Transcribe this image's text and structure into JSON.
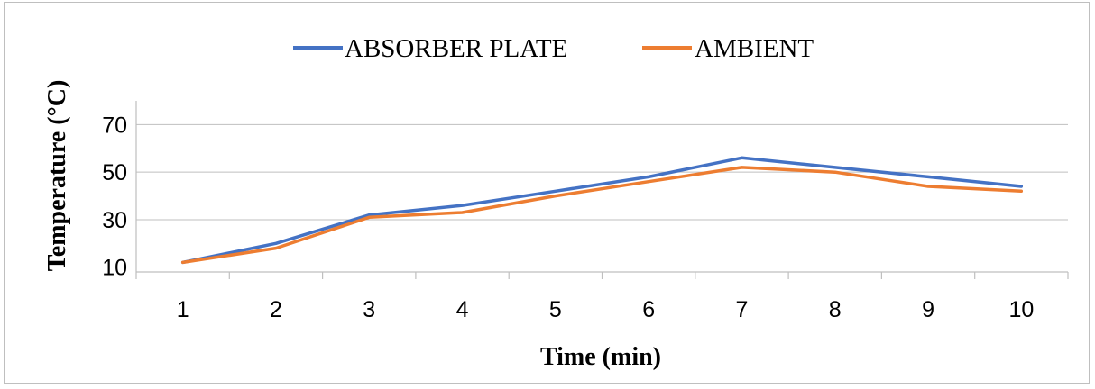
{
  "chart_data": {
    "type": "line",
    "title": "",
    "xlabel": "Time (min)",
    "ylabel": "Temperature (°C)",
    "categories": [
      "1",
      "2",
      "3",
      "4",
      "5",
      "6",
      "7",
      "8",
      "9",
      "10"
    ],
    "yticks": [
      "10",
      "30",
      "50",
      "70"
    ],
    "ylim": [
      10,
      70
    ],
    "grid": true,
    "legend_position": "top",
    "series": [
      {
        "name": "ABSORBER PLATE",
        "color": "#4472C4",
        "values": [
          12,
          20,
          32,
          36,
          42,
          48,
          56,
          52,
          48,
          44
        ]
      },
      {
        "name": "AMBIENT",
        "color": "#ED7D31",
        "values": [
          12,
          18,
          31,
          33,
          40,
          46,
          52,
          50,
          44,
          42
        ]
      }
    ]
  }
}
